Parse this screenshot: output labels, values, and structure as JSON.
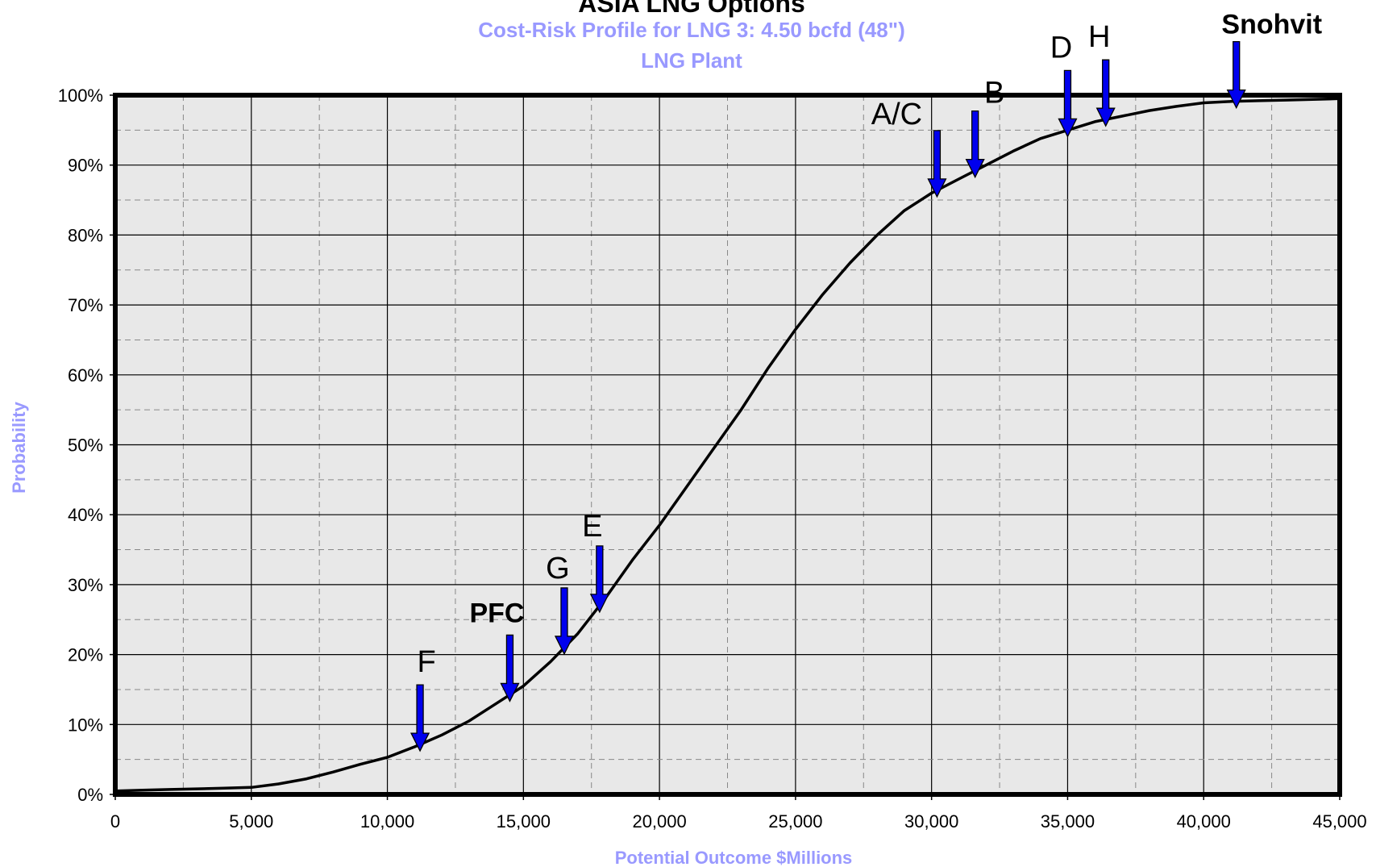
{
  "chart_data": {
    "type": "line",
    "title": "ASIA LNG Options",
    "subtitle": "Cost-Risk Profile for LNG 3: 4.50 bcfd (48\")",
    "subtitle2": "LNG Plant",
    "xlabel": "Potential Outcome $Millions",
    "ylabel": "Probability",
    "xlim": [
      0,
      45000
    ],
    "ylim": [
      0,
      100
    ],
    "x_ticks": [
      0,
      5000,
      10000,
      15000,
      20000,
      25000,
      30000,
      35000,
      40000,
      45000
    ],
    "x_tick_labels": [
      "0",
      "5,000",
      "10,000",
      "15,000",
      "20,000",
      "25,000",
      "30,000",
      "35,000",
      "40,000",
      "45,000"
    ],
    "y_ticks": [
      0,
      10,
      20,
      30,
      40,
      50,
      60,
      70,
      80,
      90,
      100
    ],
    "y_tick_labels": [
      "0%",
      "10%",
      "20%",
      "30%",
      "40%",
      "50%",
      "60%",
      "70%",
      "80%",
      "90%",
      "100%"
    ],
    "grid": true,
    "colors": {
      "title": "#000000",
      "subtitle": "#9999ff",
      "axis_label": "#9999ff",
      "plot_background": "#e8e8e8",
      "curve": "#000000",
      "arrow": "#0000ee"
    },
    "series": [
      {
        "x": [
          0,
          1000,
          2000,
          3000,
          4000,
          5000,
          6000,
          7000,
          8000,
          9000,
          10000,
          11000,
          12000,
          13000,
          14000,
          15000,
          16000,
          17000,
          18000,
          19000,
          20000,
          21000,
          22000,
          23000,
          24000,
          25000,
          26000,
          27000,
          28000,
          29000,
          30000,
          31000,
          32000,
          33000,
          34000,
          35000,
          36000,
          37000,
          38000,
          39000,
          40000,
          41000,
          42000,
          43000,
          44000,
          45000
        ],
        "values": [
          0.5,
          0.6,
          0.7,
          0.8,
          0.9,
          1.0,
          1.5,
          2.2,
          3.2,
          4.3,
          5.3,
          6.8,
          8.5,
          10.5,
          13.0,
          15.5,
          19.0,
          23.0,
          28.0,
          33.5,
          38.5,
          44.0,
          49.5,
          55.0,
          61.0,
          66.5,
          71.5,
          76.0,
          80.0,
          83.5,
          86.0,
          88.0,
          90.0,
          92.0,
          93.8,
          95.0,
          96.2,
          97.0,
          97.8,
          98.4,
          98.9,
          99.1,
          99.2,
          99.3,
          99.4,
          99.5
        ]
      }
    ],
    "markers": [
      {
        "label": "F",
        "x": 11200,
        "bold": false
      },
      {
        "label": "PFC",
        "x": 14500,
        "bold": true
      },
      {
        "label": "G",
        "x": 16500,
        "bold": false
      },
      {
        "label": "E",
        "x": 17800,
        "bold": false
      },
      {
        "label": "A/C",
        "x": 30200,
        "bold": false
      },
      {
        "label": "B",
        "x": 31600,
        "bold": false
      },
      {
        "label": "D",
        "x": 35000,
        "bold": false
      },
      {
        "label": "H",
        "x": 36400,
        "bold": false
      },
      {
        "label": "Snohvit",
        "x": 41200,
        "bold": true
      }
    ]
  }
}
